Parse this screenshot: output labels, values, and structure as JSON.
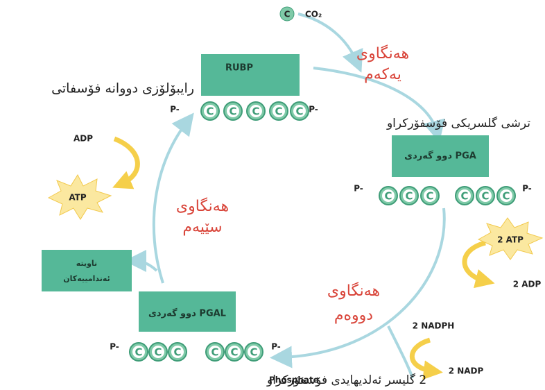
{
  "co2": {
    "carbon": "C",
    "label": "CO₂"
  },
  "rubp": {
    "box": "RUBP",
    "name": "رایبۆلۆزی دووانە فۆسفاتی",
    "phosphate_left": "P-",
    "phosphate_right": "P-",
    "carbons": [
      "C",
      "C",
      "C",
      "C",
      "C"
    ]
  },
  "step1": {
    "line1": "هەنگاوی",
    "line2": "یەکەم"
  },
  "pga": {
    "name": "ترشی گلسریکی فۆسفۆرکراو",
    "box": "دوو گەردی PGA",
    "phosphate_left": "P-",
    "phosphate_right": "P-",
    "carbons": [
      "C",
      "C",
      "C",
      "C",
      "C",
      "C"
    ]
  },
  "step2": {
    "line1": "هەنگاوی",
    "line2": "دووەم",
    "atp": "2 ATP",
    "adp": "2 ADP",
    "nadph": "2 NADPH",
    "nadp": "2 NADP"
  },
  "pgal": {
    "box": "دوو گەردی PGAL",
    "phosphate_left": "P-",
    "phosphate_right": "P-",
    "carbons": [
      "C",
      "C",
      "C",
      "C",
      "C",
      "C"
    ],
    "name": "2 گلیسر ئەلدیهایدی فۆسفۆرکراو",
    "name_suffix": "Phosphate"
  },
  "step3": {
    "line1": "هەنگاوی",
    "line2": "سێیەم",
    "adp": "ADP",
    "atp": "ATP"
  },
  "organic": {
    "line1": "ناویتە",
    "line2": "ئەندامییەکان"
  }
}
